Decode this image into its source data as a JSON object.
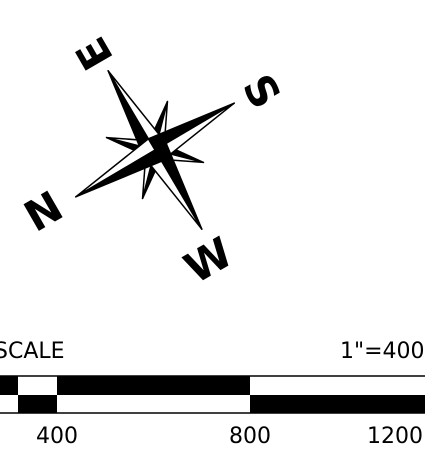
{
  "compass": {
    "north": "N",
    "east": "E",
    "south": "S",
    "west": "W"
  },
  "scale": {
    "title": "SCALE",
    "ratio": "1\"=400",
    "labels": [
      "400",
      "800",
      "1200"
    ]
  }
}
